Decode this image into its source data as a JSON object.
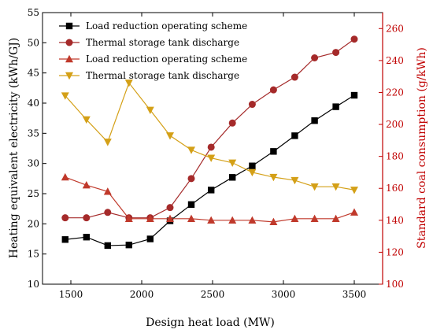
{
  "chart_data": {
    "type": "line",
    "x": [
      1460,
      1610,
      1760,
      1910,
      2060,
      2200,
      2350,
      2490,
      2640,
      2780,
      2930,
      3080,
      3220,
      3370,
      3500
    ],
    "xlabel": "Design heat load (MW)",
    "xlim": [
      1300,
      3700
    ],
    "xticks": [
      "1500",
      "2000",
      "2500",
      "3000",
      "3500"
    ],
    "y_left": {
      "label": "Heating equivalent electricity (kWh/GJ)",
      "lim": [
        10,
        55
      ],
      "ticks": [
        "10",
        "15",
        "20",
        "25",
        "30",
        "35",
        "40",
        "45",
        "50",
        "55"
      ]
    },
    "y_right": {
      "label": "Standard coal consumption (g/kWh)",
      "lim": [
        100,
        270
      ],
      "ticks": [
        "100",
        "120",
        "140",
        "160",
        "180",
        "200",
        "220",
        "240",
        "260"
      ],
      "color": "#c00000"
    },
    "series": [
      {
        "name": "Load reduction operating scheme",
        "axis": "left",
        "marker": "square",
        "color": "#000000",
        "values": [
          17.4,
          17.8,
          16.4,
          16.5,
          17.5,
          20.5,
          23.2,
          25.6,
          27.7,
          29.6,
          32.0,
          34.6,
          37.1,
          39.4,
          41.3
        ]
      },
      {
        "name": "Thermal storage tank discharge",
        "axis": "left",
        "marker": "circle",
        "color": "#a52a2a",
        "values": [
          21.0,
          21.0,
          21.9,
          21.0,
          21.0,
          22.7,
          27.5,
          32.7,
          36.7,
          39.8,
          42.2,
          44.3,
          47.5,
          48.4,
          50.6
        ]
      },
      {
        "name": "Load reduction operating scheme",
        "axis": "right",
        "marker": "triangle-up",
        "color": "#c0392b",
        "values": [
          167,
          162,
          158,
          141,
          141,
          141,
          141,
          140,
          140,
          140,
          139,
          141,
          141,
          141,
          145
        ]
      },
      {
        "name": "Thermal storage tank discharge",
        "axis": "right",
        "marker": "triangle-down",
        "color": "#d4a017",
        "values": [
          218,
          203,
          189,
          226,
          209,
          193,
          184,
          179,
          176,
          170,
          167,
          165,
          161,
          161,
          159
        ]
      }
    ],
    "legend_position": "top-center",
    "grid": false
  }
}
